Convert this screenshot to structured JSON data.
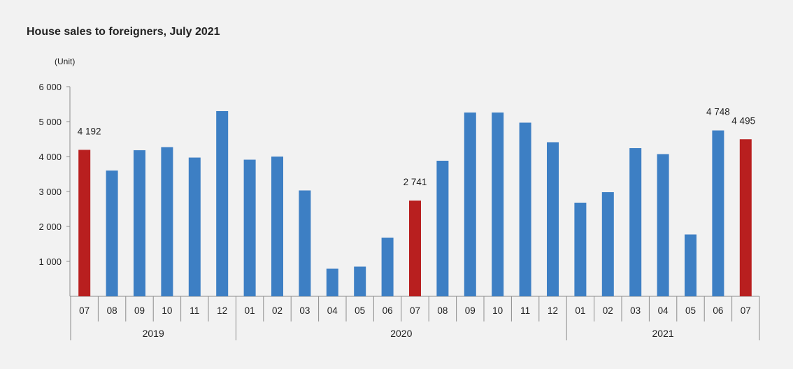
{
  "chart_data": {
    "type": "bar",
    "title": "House sales to foreigners, July 2021",
    "ylabel": "(Unit)",
    "xlabel": "",
    "ylim": [
      0,
      6000
    ],
    "yticks": [
      {
        "value": 1000,
        "label": "1 000"
      },
      {
        "value": 2000,
        "label": "2 000"
      },
      {
        "value": 3000,
        "label": "3 000"
      },
      {
        "value": 4000,
        "label": "4 000"
      },
      {
        "value": 5000,
        "label": "5 000"
      },
      {
        "value": 6000,
        "label": "6 000"
      }
    ],
    "year_groups": [
      {
        "label": "2019",
        "count": 6
      },
      {
        "label": "2020",
        "count": 12
      },
      {
        "label": "2021",
        "count": 7
      }
    ],
    "categories": [
      "07",
      "08",
      "09",
      "10",
      "11",
      "12",
      "01",
      "02",
      "03",
      "04",
      "05",
      "06",
      "07",
      "08",
      "09",
      "10",
      "11",
      "12",
      "01",
      "02",
      "03",
      "04",
      "05",
      "06",
      "07"
    ],
    "values": [
      4192,
      3600,
      4180,
      4270,
      3970,
      5300,
      3910,
      4000,
      3030,
      790,
      850,
      1680,
      2741,
      3880,
      5260,
      5260,
      4970,
      4410,
      2680,
      2980,
      4240,
      4070,
      1770,
      4748,
      4495
    ],
    "highlight_indices": [
      0,
      12,
      24
    ],
    "data_labels": [
      {
        "index": 0,
        "text": "4 192"
      },
      {
        "index": 12,
        "text": "2 741"
      },
      {
        "index": 23,
        "text": "4 748"
      },
      {
        "index": 24,
        "text": "4 495"
      }
    ],
    "colors": {
      "bar": "#3d7fc4",
      "highlight": "#b81f1f",
      "axis": "#8c8c8c"
    },
    "grid": false,
    "legend": "none"
  }
}
